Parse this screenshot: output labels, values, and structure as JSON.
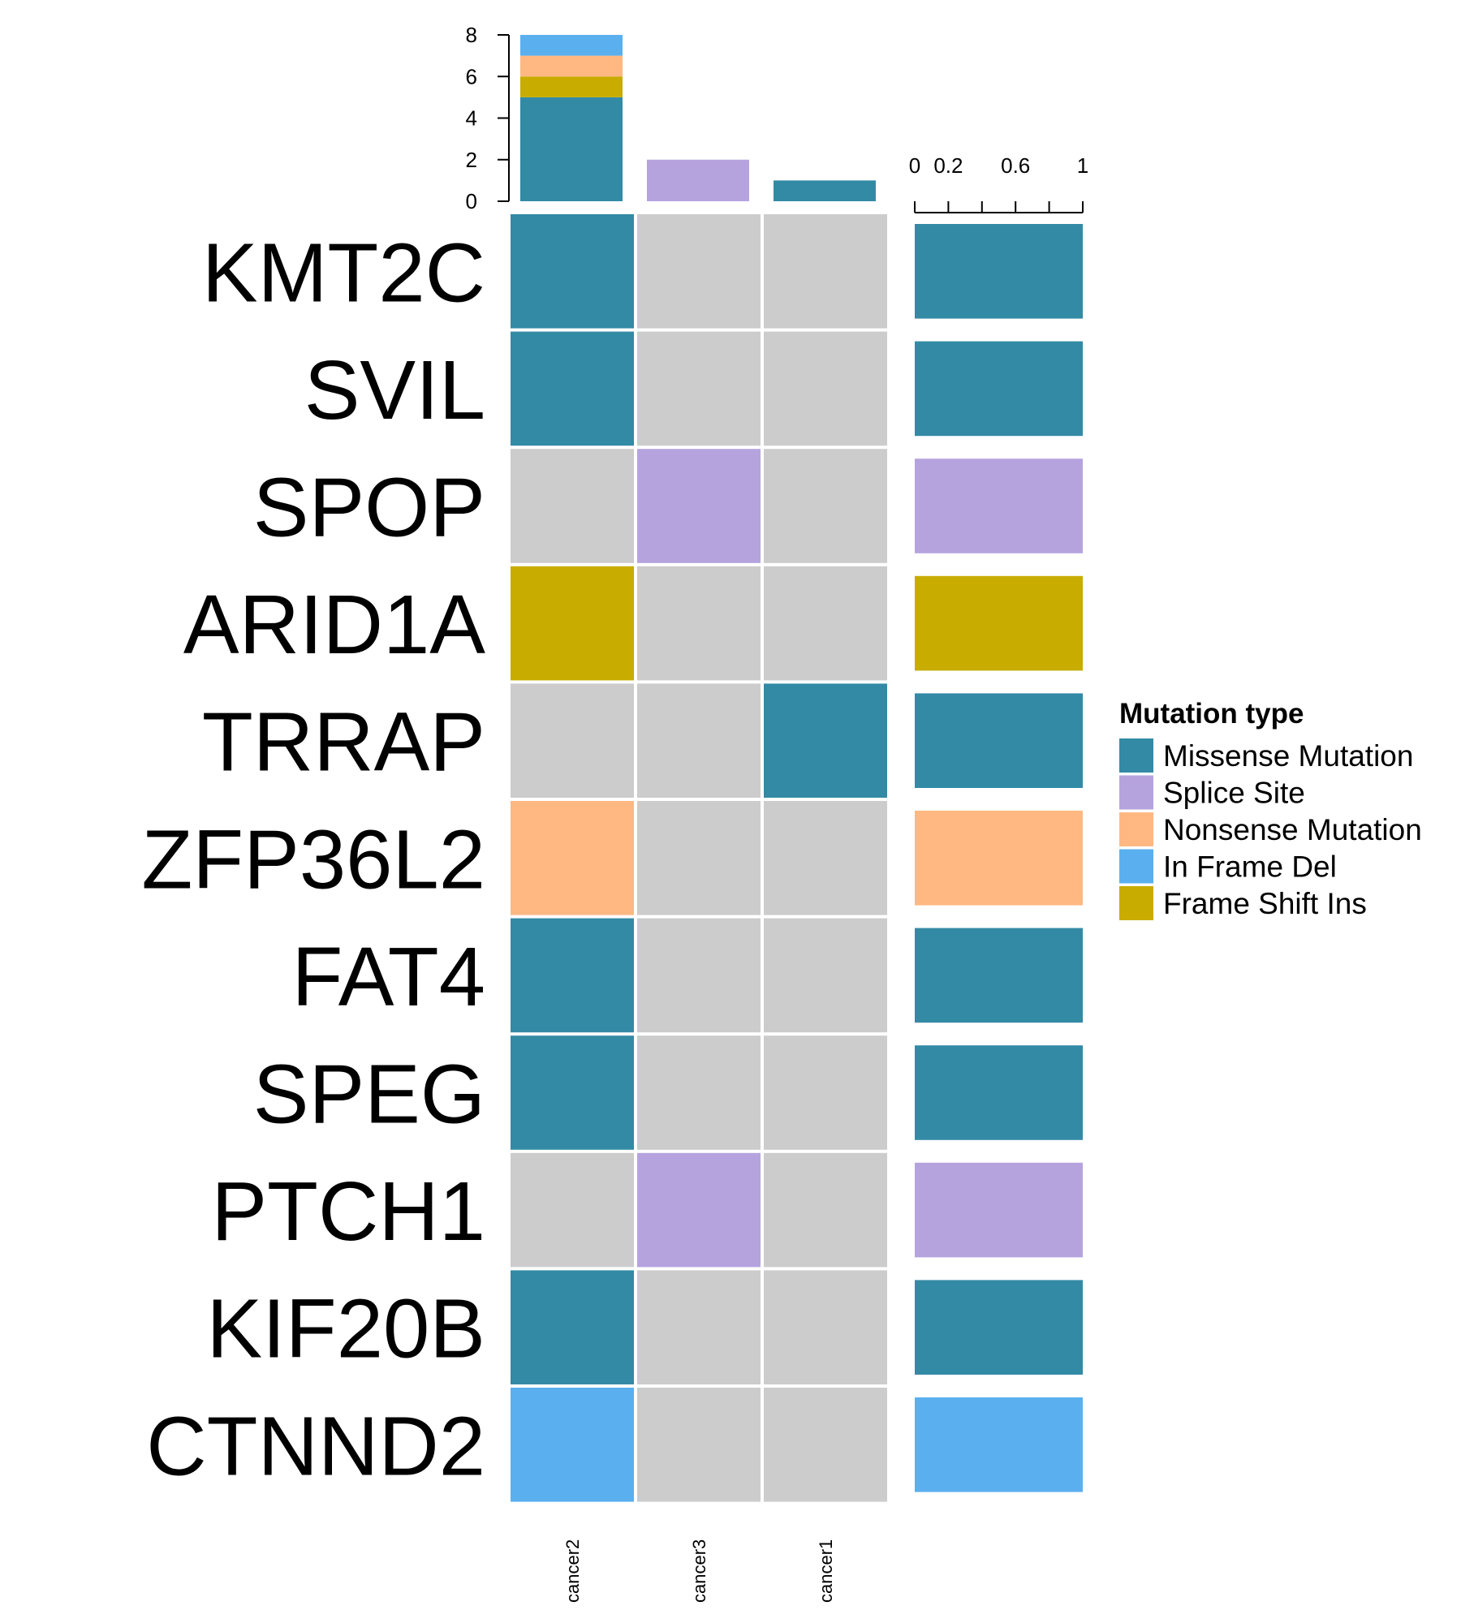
{
  "chart_data": {
    "type": "heatmap",
    "title": "",
    "genes": [
      "KMT2C",
      "SVIL",
      "SPOP",
      "ARID1A",
      "TRRAP",
      "ZFP36L2",
      "FAT4",
      "SPEG",
      "PTCH1",
      "KIF20B",
      "CTNND2"
    ],
    "samples": [
      "cancer2",
      "cancer3",
      "cancer1"
    ],
    "matrix": [
      [
        "Missense Mutation",
        "",
        ""
      ],
      [
        "Missense Mutation",
        "",
        ""
      ],
      [
        "",
        "Splice Site",
        ""
      ],
      [
        "Frame Shift Ins",
        "",
        ""
      ],
      [
        "",
        "",
        "Missense Mutation"
      ],
      [
        "Nonsense Mutation",
        "",
        ""
      ],
      [
        "Missense Mutation",
        "",
        ""
      ],
      [
        "Missense Mutation",
        "",
        ""
      ],
      [
        "",
        "Splice Site",
        ""
      ],
      [
        "Missense Mutation",
        "",
        ""
      ],
      [
        "In Frame Del",
        "",
        ""
      ]
    ],
    "top_bar": {
      "ylim": [
        0,
        8
      ],
      "ticks": [
        "0",
        "2",
        "4",
        "6",
        "8"
      ],
      "stack_order": [
        "Missense Mutation",
        "Frame Shift Ins",
        "Nonsense Mutation",
        "In Frame Del",
        "Splice Site"
      ],
      "counts": [
        {
          "Missense Mutation": 5,
          "Frame Shift Ins": 1,
          "Nonsense Mutation": 1,
          "In Frame Del": 1
        },
        {
          "Splice Site": 2
        },
        {
          "Missense Mutation": 1
        }
      ]
    },
    "right_bar": {
      "xlim": [
        0,
        1
      ],
      "ticks": [
        0,
        0.2,
        0.4,
        0.6,
        0.8,
        1
      ],
      "tick_labels": [
        "0",
        "0.2",
        "",
        "0.6",
        "",
        "1"
      ],
      "fractions": [
        1,
        1,
        1,
        1,
        1,
        1,
        1,
        1,
        1,
        1,
        1
      ],
      "types": [
        "Missense Mutation",
        "Missense Mutation",
        "Splice Site",
        "Frame Shift Ins",
        "Missense Mutation",
        "Nonsense Mutation",
        "Missense Mutation",
        "Missense Mutation",
        "Splice Site",
        "Missense Mutation",
        "In Frame Del"
      ]
    },
    "legend": {
      "title": "Mutation type",
      "placement": "right",
      "items": [
        "Missense Mutation",
        "Splice Site",
        "Nonsense Mutation",
        "In Frame Del",
        "Frame Shift Ins"
      ]
    },
    "colors": {
      "Missense Mutation": "#338AA5",
      "Splice Site": "#B5A3DE",
      "Nonsense Mutation": "#FFB882",
      "In Frame Del": "#5AB0EF",
      "Frame Shift Ins": "#C8AC00",
      "background": "#CCCCCC"
    }
  }
}
